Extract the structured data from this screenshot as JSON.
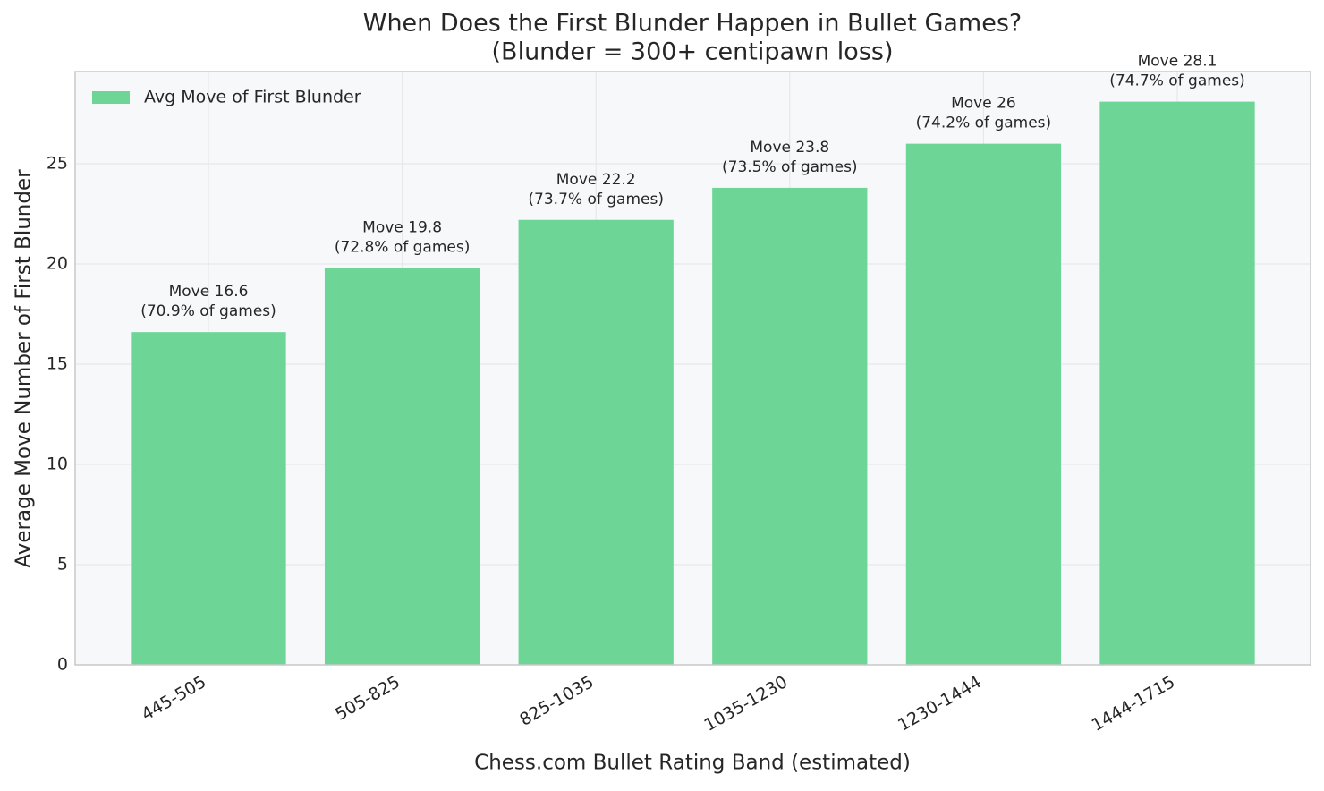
{
  "chart_data": {
    "type": "bar",
    "title": "When Does the First Blunder Happen in Bullet Games?",
    "subtitle": "(Blunder = 300+ centipawn loss)",
    "x_label": "Chess.com Bullet Rating Band (estimated)",
    "y_label": "Average Move Number of First Blunder",
    "categories": [
      "445-505",
      "505-825",
      "825-1035",
      "1035-1230",
      "1230-1444",
      "1444-1715"
    ],
    "series": [
      {
        "name": "Avg Move of First Blunder",
        "color": "#6dd696",
        "values": [
          16.6,
          19.8,
          22.2,
          23.8,
          26,
          28.1
        ],
        "value_labels": [
          "Move 16.6",
          "Move 19.8",
          "Move 22.2",
          "Move 23.8",
          "Move 26",
          "Move 28.1"
        ],
        "annotations": [
          "(70.9% of games)",
          "(72.8% of games)",
          "(73.7% of games)",
          "(73.5% of games)",
          "(74.2% of games)",
          "(74.7% of games)"
        ]
      }
    ],
    "ylim": [
      0,
      29.6
    ],
    "yticks": [
      0,
      5,
      10,
      15,
      20,
      25
    ],
    "grid": true,
    "legend": "upper left"
  }
}
